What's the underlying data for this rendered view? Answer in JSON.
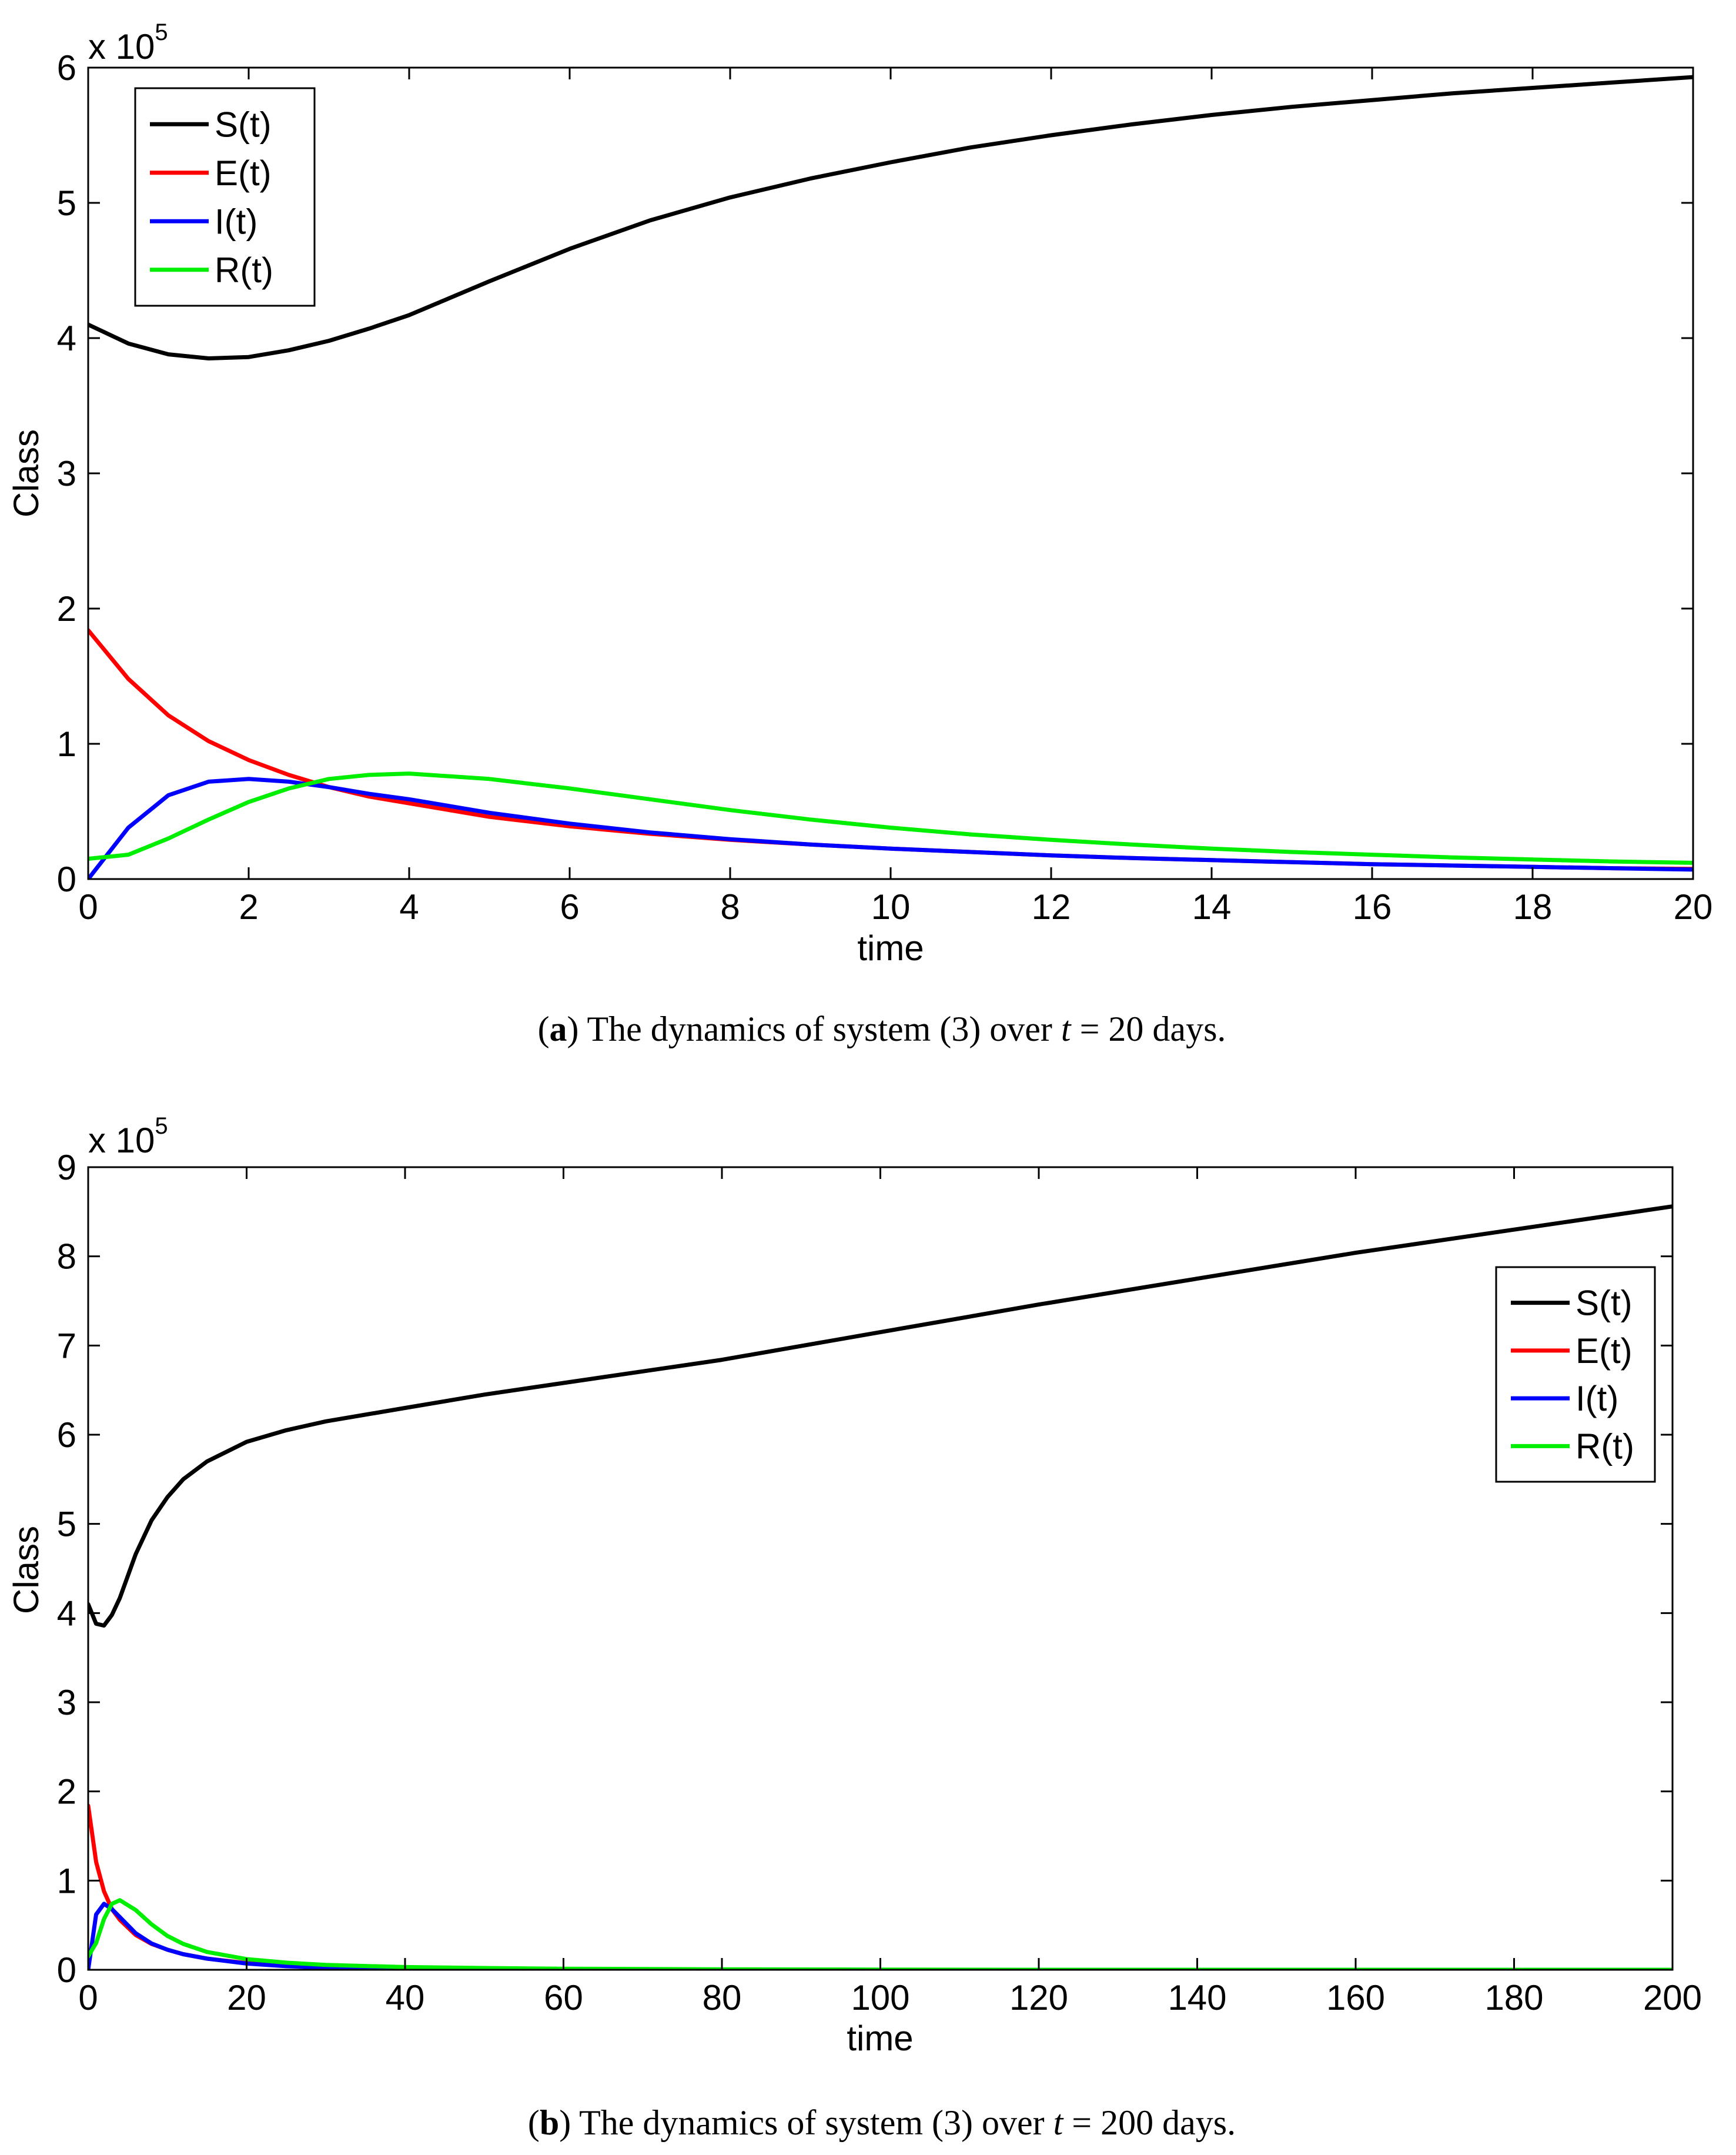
{
  "chart_data": [
    {
      "type": "line",
      "panel": "a",
      "caption": {
        "label": "a",
        "text_before": "The dynamics of system (3) over ",
        "var": "t",
        "text_after": " = 20 days."
      },
      "xlabel": "time",
      "ylabel": "Class",
      "y_multiplier": "x 10",
      "y_exponent": "5",
      "xlim": [
        0,
        20
      ],
      "ylim": [
        0,
        6
      ],
      "xticks": [
        0,
        2,
        4,
        6,
        8,
        10,
        12,
        14,
        16,
        18,
        20
      ],
      "yticks": [
        0,
        1,
        2,
        3,
        4,
        5,
        6
      ],
      "legend_position": "top-left",
      "x": [
        0,
        0.5,
        1,
        1.5,
        2,
        2.5,
        3,
        3.5,
        4,
        5,
        6,
        7,
        8,
        9,
        10,
        11,
        12,
        13,
        14,
        15,
        16,
        17,
        18,
        19,
        20
      ],
      "series": [
        {
          "name": "S(t)",
          "color": "#000000",
          "values": [
            4.1,
            3.96,
            3.88,
            3.85,
            3.86,
            3.91,
            3.98,
            4.07,
            4.17,
            4.42,
            4.66,
            4.87,
            5.04,
            5.18,
            5.3,
            5.41,
            5.5,
            5.58,
            5.65,
            5.71,
            5.76,
            5.81,
            5.85,
            5.89,
            5.93
          ]
        },
        {
          "name": "E(t)",
          "color": "#ff0000",
          "values": [
            1.84,
            1.48,
            1.21,
            1.02,
            0.88,
            0.77,
            0.68,
            0.61,
            0.56,
            0.46,
            0.39,
            0.335,
            0.29,
            0.255,
            0.225,
            0.2,
            0.175,
            0.155,
            0.14,
            0.125,
            0.11,
            0.1,
            0.09,
            0.08,
            0.075
          ]
        },
        {
          "name": "I(t)",
          "color": "#0000ff",
          "values": [
            0.0,
            0.38,
            0.62,
            0.72,
            0.74,
            0.72,
            0.68,
            0.63,
            0.59,
            0.49,
            0.41,
            0.345,
            0.295,
            0.255,
            0.225,
            0.2,
            0.175,
            0.155,
            0.14,
            0.125,
            0.11,
            0.1,
            0.09,
            0.08,
            0.07
          ]
        },
        {
          "name": "R(t)",
          "color": "#00ee00",
          "values": [
            0.15,
            0.18,
            0.3,
            0.44,
            0.57,
            0.67,
            0.74,
            0.77,
            0.78,
            0.74,
            0.67,
            0.59,
            0.51,
            0.44,
            0.38,
            0.33,
            0.29,
            0.255,
            0.225,
            0.2,
            0.18,
            0.16,
            0.145,
            0.13,
            0.12
          ]
        }
      ]
    },
    {
      "type": "line",
      "panel": "b",
      "caption": {
        "label": "b",
        "text_before": "The dynamics of system (3) over ",
        "var": "t",
        "text_after": " = 200 days."
      },
      "xlabel": "time",
      "ylabel": "Class",
      "y_multiplier": "x 10",
      "y_exponent": "5",
      "xlim": [
        0,
        200
      ],
      "ylim": [
        0,
        9
      ],
      "xticks": [
        0,
        20,
        40,
        60,
        80,
        100,
        120,
        140,
        160,
        180,
        200
      ],
      "yticks": [
        0,
        1,
        2,
        3,
        4,
        5,
        6,
        7,
        8,
        9
      ],
      "legend_position": "top-right",
      "x": [
        0,
        1,
        2,
        3,
        4,
        6,
        8,
        10,
        12,
        15,
        20,
        25,
        30,
        40,
        50,
        60,
        80,
        100,
        120,
        140,
        160,
        180,
        200
      ],
      "series": [
        {
          "name": "S(t)",
          "color": "#000000",
          "values": [
            4.1,
            3.88,
            3.86,
            3.98,
            4.17,
            4.66,
            5.04,
            5.3,
            5.5,
            5.7,
            5.92,
            6.05,
            6.15,
            6.3,
            6.45,
            6.58,
            6.84,
            7.15,
            7.46,
            7.75,
            8.04,
            8.3,
            8.56
          ]
        },
        {
          "name": "E(t)",
          "color": "#ff0000",
          "values": [
            1.84,
            1.21,
            0.88,
            0.68,
            0.56,
            0.39,
            0.29,
            0.225,
            0.175,
            0.125,
            0.075,
            0.045,
            0.028,
            0.012,
            0.006,
            0.003,
            0.001,
            0.0,
            0.0,
            0.0,
            0.0,
            0.0,
            0.0
          ]
        },
        {
          "name": "I(t)",
          "color": "#0000ff",
          "values": [
            0.0,
            0.62,
            0.74,
            0.68,
            0.59,
            0.41,
            0.295,
            0.225,
            0.175,
            0.125,
            0.07,
            0.04,
            0.025,
            0.01,
            0.005,
            0.002,
            0.001,
            0.0,
            0.0,
            0.0,
            0.0,
            0.0,
            0.0
          ]
        },
        {
          "name": "R(t)",
          "color": "#00ee00",
          "values": [
            0.15,
            0.3,
            0.57,
            0.74,
            0.78,
            0.67,
            0.51,
            0.38,
            0.29,
            0.2,
            0.12,
            0.08,
            0.055,
            0.03,
            0.02,
            0.012,
            0.005,
            0.002,
            0.0,
            0.0,
            0.0,
            0.0,
            0.0
          ]
        }
      ]
    }
  ]
}
